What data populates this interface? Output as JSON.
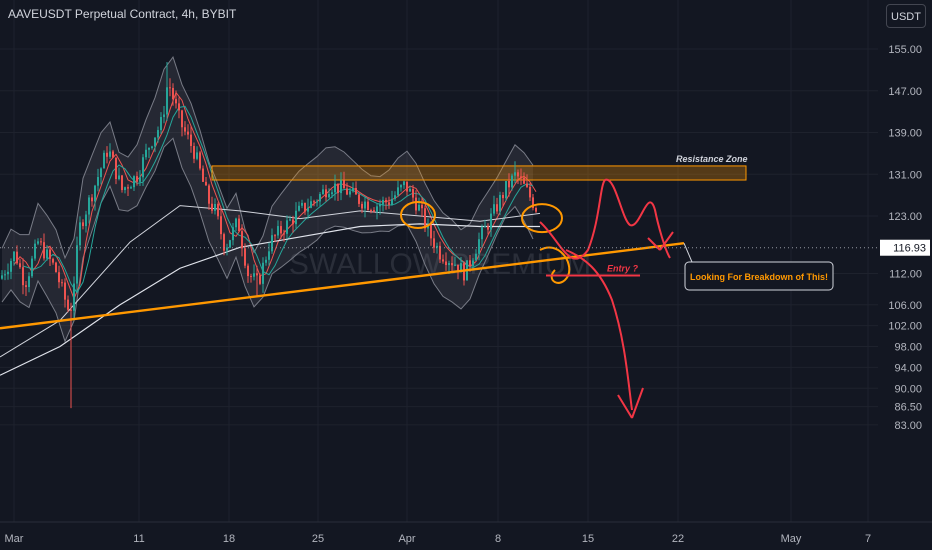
{
  "header": {
    "title": "AAVEUSDT Perpetual Contract, 4h, BYBIT",
    "currency": "USDT"
  },
  "watermark": "SWALLOW PREMIUM",
  "annotations": {
    "resistance_label": "Resistance Zone",
    "entry_label": "Entry ?",
    "breakdown_label": "Looking For Breakdown of This!"
  },
  "colors": {
    "background": "#131722",
    "up": "#26a69a",
    "down": "#ef5350",
    "orange": "#ff9800",
    "red_path": "#f23645",
    "bands": "#787b86"
  },
  "chart_data": {
    "type": "candlestick",
    "symbol": "AAVEUSDT",
    "timeframe": "4h",
    "exchange": "BYBIT",
    "y_ticks": [
      155.0,
      147.0,
      139.0,
      131.0,
      123.0,
      116.93,
      112.0,
      106.0,
      102.0,
      98.0,
      94.0,
      90.0,
      86.5,
      83.0
    ],
    "y_tick_labels": [
      "155.00",
      "147.00",
      "139.00",
      "131.00",
      "123.00",
      "",
      "112.00",
      "106.00",
      "102.00",
      "98.00",
      "94.00",
      "90.00",
      "86.50",
      "83.00"
    ],
    "x_tick_labels": [
      "Mar",
      "11",
      "18",
      "25",
      "Apr",
      "8",
      "15",
      "22",
      "May",
      "7"
    ],
    "current_price": "116.93",
    "resistance_zone": [
      129.9,
      132.6
    ],
    "entry_level": 111.6,
    "trendline": {
      "start": 101.5,
      "end": 117.8
    },
    "projected_low": 93.5,
    "ylim": [
      81.5,
      157
    ]
  }
}
